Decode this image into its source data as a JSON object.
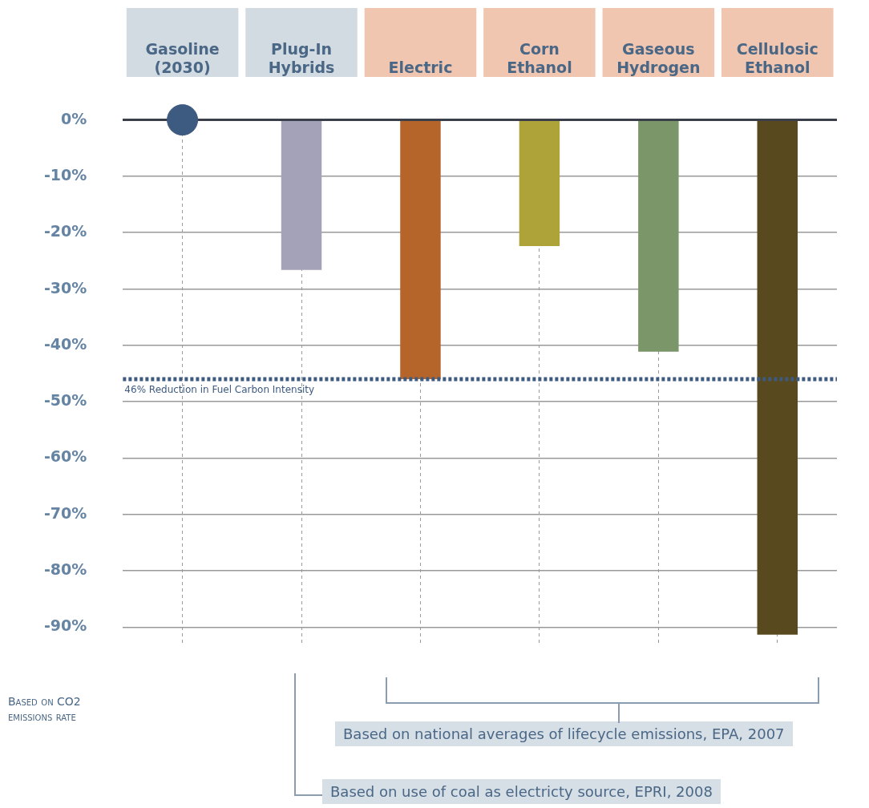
{
  "chart_data": {
    "type": "bar",
    "categories": [
      "Gasoline (2030)",
      "Plug-In Hybrids",
      "Electric",
      "Corn Ethanol",
      "Gaseous Hydrogen",
      "Cellulosic Ethanol"
    ],
    "series": [
      {
        "colors": [
          "#a3a2b8",
          "#a3a2b8",
          "#b5642a",
          "#ada338",
          "#7b976a",
          "#584a1e"
        ],
        "values": [
          null,
          -26.6,
          -46,
          -22.4,
          -41.1,
          -91.3
        ]
      },
      {
        "type": "scatter",
        "color": "#3d5a80",
        "x": [
          "Gasoline (2030)"
        ],
        "values": [
          0
        ]
      }
    ],
    "ylim": [
      -93,
      0
    ],
    "yticks": [
      {
        "value": 0,
        "label": "0%"
      },
      {
        "value": -10,
        "label": "-10%"
      },
      {
        "value": -20,
        "label": "-20%"
      },
      {
        "value": -30,
        "label": "-30%"
      },
      {
        "value": -40,
        "label": "-40%"
      },
      {
        "value": -50,
        "label": "-50%"
      },
      {
        "value": -60,
        "label": "-60%"
      },
      {
        "value": -70,
        "label": "-70%"
      },
      {
        "value": -80,
        "label": "-80%"
      },
      {
        "value": -90,
        "label": "-90%"
      }
    ],
    "grid": true,
    "legend": false,
    "marker": "circle",
    "ref_lines": [
      {
        "axis": "y",
        "value": -46,
        "label": "46% Reduction in Fuel Carbon Intensity",
        "color": "#3d5a80",
        "line_style": "dotted"
      }
    ],
    "annotations": [
      "Based on CO2 emissions rate",
      "Based on national averages of lifecycle emissions, EPA, 2007",
      "Based on use of coal as electricty source, EPRI, 2008"
    ]
  }
}
